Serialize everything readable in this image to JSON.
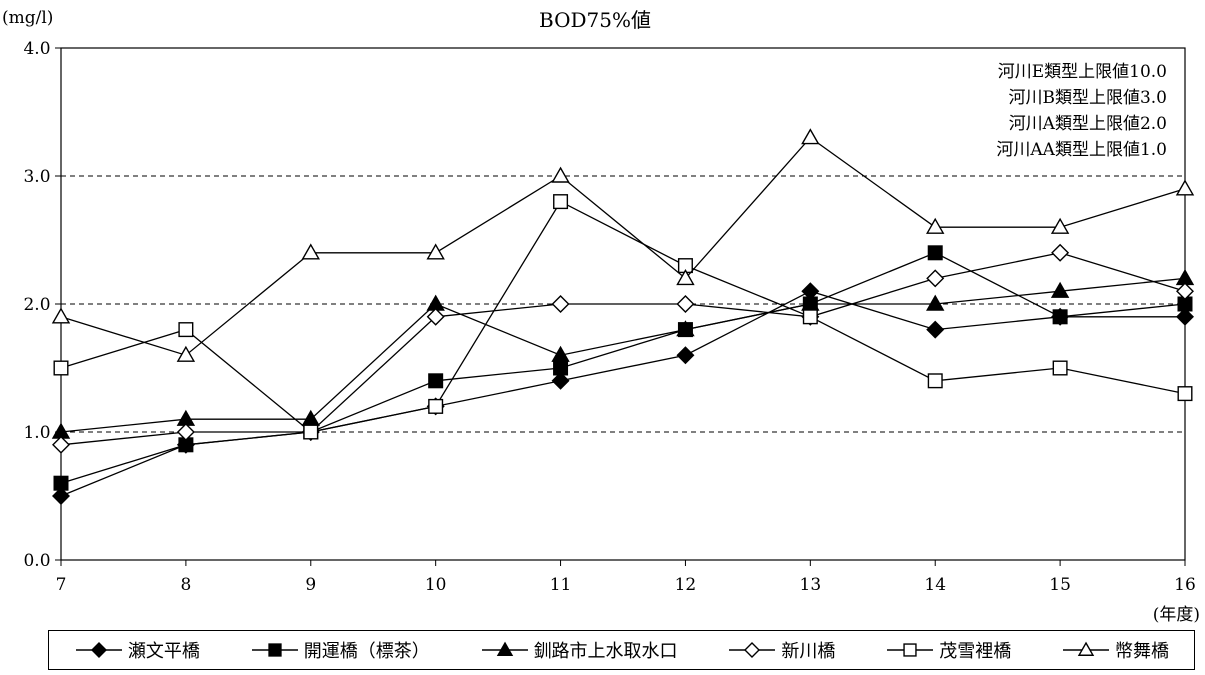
{
  "chart_data": {
    "type": "line",
    "title": "BOD75%値",
    "ylabel": "(mg/l)",
    "xlabel": "(年度)",
    "categories": [
      "7",
      "8",
      "9",
      "10",
      "11",
      "12",
      "13",
      "14",
      "15",
      "16"
    ],
    "ylim": [
      0,
      4
    ],
    "yticks": [
      "0.0",
      "1.0",
      "2.0",
      "3.0",
      "4.0"
    ],
    "ytick_values": [
      0,
      1,
      2,
      3,
      4
    ],
    "reference_lines": [
      1.0,
      2.0,
      3.0
    ],
    "annotations": [
      "河川E類型上限値10.0",
      "河川B類型上限値3.0",
      "河川A類型上限値2.0",
      "河川AA類型上限値1.0"
    ],
    "grid": false,
    "legend_position": "bottom",
    "series": [
      {
        "name": "瀬文平橋",
        "marker": "diamond",
        "filled": true,
        "values": [
          0.5,
          0.9,
          1.0,
          1.2,
          1.4,
          1.6,
          2.1,
          1.8,
          1.9,
          1.9
        ]
      },
      {
        "name": "開運橋（標茶）",
        "marker": "square",
        "filled": true,
        "values": [
          0.6,
          0.9,
          1.0,
          1.4,
          1.5,
          1.8,
          2.0,
          2.4,
          1.9,
          2.0
        ]
      },
      {
        "name": "釧路市上水取水口",
        "marker": "triangle",
        "filled": true,
        "values": [
          1.0,
          1.1,
          1.1,
          2.0,
          1.6,
          1.8,
          2.0,
          2.0,
          2.1,
          2.2
        ]
      },
      {
        "name": "新川橋",
        "marker": "diamond",
        "filled": false,
        "values": [
          0.9,
          1.0,
          1.0,
          1.9,
          2.0,
          2.0,
          1.9,
          2.2,
          2.4,
          2.1
        ]
      },
      {
        "name": "茂雪裡橋",
        "marker": "square",
        "filled": false,
        "values": [
          1.5,
          1.8,
          1.0,
          1.2,
          2.8,
          2.3,
          1.9,
          1.4,
          1.5,
          1.3
        ]
      },
      {
        "name": "幣舞橋",
        "marker": "triangle",
        "filled": false,
        "values": [
          1.9,
          1.6,
          2.4,
          2.4,
          3.0,
          2.2,
          3.3,
          2.6,
          2.6,
          2.9
        ]
      }
    ]
  }
}
